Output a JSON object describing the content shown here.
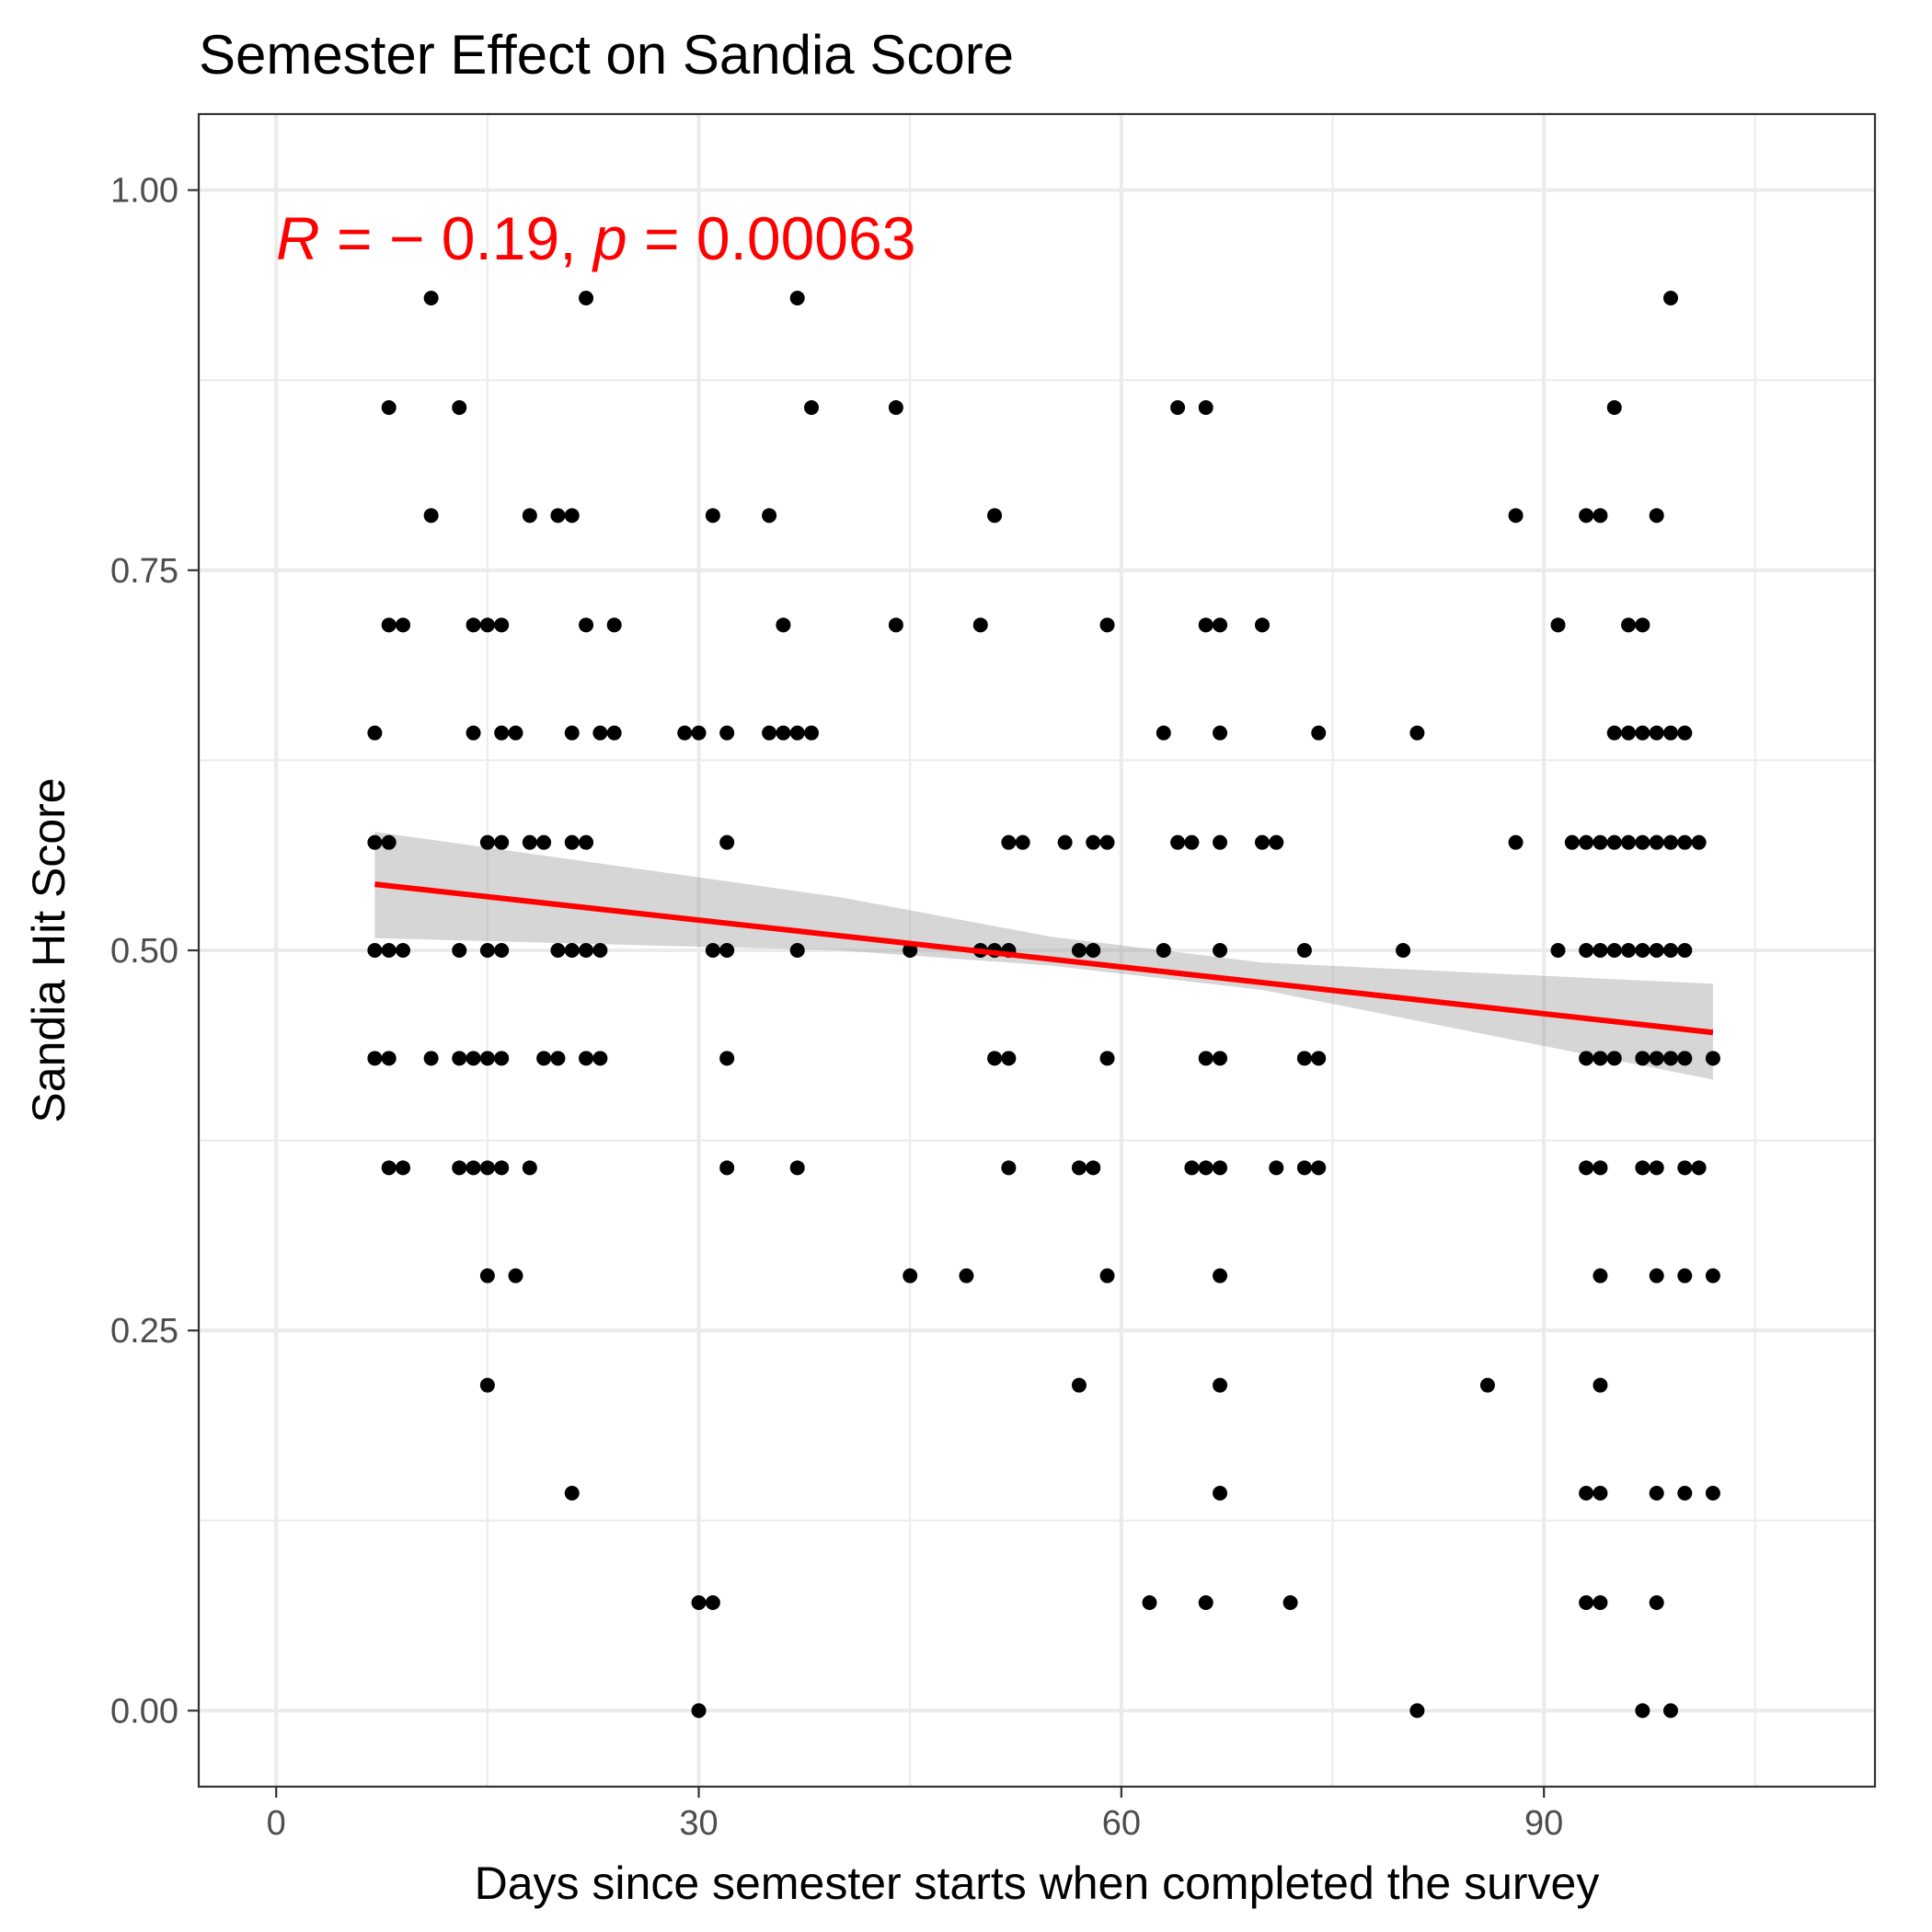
{
  "chart_data": {
    "type": "scatter",
    "title": "Semester Effect on Sandia Score",
    "xlabel": "Days since semester starts when completed the survey",
    "ylabel": "Sandia Hit Score",
    "xlim": [
      -5.5,
      113.5
    ],
    "ylim": [
      -0.05,
      1.05
    ],
    "x_ticks": [
      "0",
      "30",
      "60",
      "90"
    ],
    "x_tick_values": [
      0,
      30,
      60,
      90
    ],
    "y_ticks": [
      "0.00",
      "0.25",
      "0.50",
      "0.75",
      "1.00"
    ],
    "y_tick_values": [
      0,
      0.25,
      0.5,
      0.75,
      1.0
    ],
    "grid": true,
    "annotation": {
      "r_symbol": "R",
      "r_text": " = − 0.19, ",
      "p_symbol": "p",
      "p_text": " = 0.00063",
      "color": "#ff0000"
    },
    "fit_line": {
      "color": "#ff0000",
      "x": [
        7,
        102
      ],
      "y": [
        0.5435,
        0.446
      ],
      "ci_band": {
        "color": "#999999",
        "x": [
          7,
          40,
          55,
          70,
          102
        ],
        "lower": [
          0.508,
          0.5,
          0.49,
          0.474,
          0.415
        ],
        "upper": [
          0.578,
          0.535,
          0.509,
          0.492,
          0.478
        ]
      }
    },
    "series": [
      {
        "color": "#000000",
        "points": [
          [
            11,
            0.929
          ],
          [
            22,
            0.929
          ],
          [
            37,
            0.929
          ],
          [
            99,
            0.929
          ],
          [
            8,
            0.857
          ],
          [
            13,
            0.857
          ],
          [
            38,
            0.857
          ],
          [
            44,
            0.857
          ],
          [
            64,
            0.857
          ],
          [
            66,
            0.857
          ],
          [
            95,
            0.857
          ],
          [
            11,
            0.786
          ],
          [
            18,
            0.786
          ],
          [
            20,
            0.786
          ],
          [
            21,
            0.786
          ],
          [
            31,
            0.786
          ],
          [
            35,
            0.786
          ],
          [
            51,
            0.786
          ],
          [
            88,
            0.786
          ],
          [
            93,
            0.786
          ],
          [
            94,
            0.786
          ],
          [
            98,
            0.786
          ],
          [
            8,
            0.714
          ],
          [
            9,
            0.714
          ],
          [
            14,
            0.714
          ],
          [
            15,
            0.714
          ],
          [
            16,
            0.714
          ],
          [
            22,
            0.714
          ],
          [
            24,
            0.714
          ],
          [
            36,
            0.714
          ],
          [
            44,
            0.714
          ],
          [
            50,
            0.714
          ],
          [
            59,
            0.714
          ],
          [
            66,
            0.714
          ],
          [
            67,
            0.714
          ],
          [
            70,
            0.714
          ],
          [
            91,
            0.714
          ],
          [
            96,
            0.714
          ],
          [
            97,
            0.714
          ],
          [
            7,
            0.643
          ],
          [
            14,
            0.643
          ],
          [
            16,
            0.643
          ],
          [
            17,
            0.643
          ],
          [
            21,
            0.643
          ],
          [
            23,
            0.643
          ],
          [
            24,
            0.643
          ],
          [
            29,
            0.643
          ],
          [
            30,
            0.643
          ],
          [
            32,
            0.643
          ],
          [
            35,
            0.643
          ],
          [
            36,
            0.643
          ],
          [
            37,
            0.643
          ],
          [
            38,
            0.643
          ],
          [
            63,
            0.643
          ],
          [
            67,
            0.643
          ],
          [
            74,
            0.643
          ],
          [
            81,
            0.643
          ],
          [
            95,
            0.643
          ],
          [
            96,
            0.643
          ],
          [
            97,
            0.643
          ],
          [
            98,
            0.643
          ],
          [
            99,
            0.643
          ],
          [
            100,
            0.643
          ],
          [
            7,
            0.571
          ],
          [
            8,
            0.571
          ],
          [
            15,
            0.571
          ],
          [
            16,
            0.571
          ],
          [
            18,
            0.571
          ],
          [
            19,
            0.571
          ],
          [
            21,
            0.571
          ],
          [
            22,
            0.571
          ],
          [
            32,
            0.571
          ],
          [
            52,
            0.571
          ],
          [
            53,
            0.571
          ],
          [
            56,
            0.571
          ],
          [
            58,
            0.571
          ],
          [
            59,
            0.571
          ],
          [
            64,
            0.571
          ],
          [
            65,
            0.571
          ],
          [
            67,
            0.571
          ],
          [
            70,
            0.571
          ],
          [
            71,
            0.571
          ],
          [
            88,
            0.571
          ],
          [
            92,
            0.571
          ],
          [
            93,
            0.571
          ],
          [
            94,
            0.571
          ],
          [
            95,
            0.571
          ],
          [
            96,
            0.571
          ],
          [
            97,
            0.571
          ],
          [
            98,
            0.571
          ],
          [
            99,
            0.571
          ],
          [
            100,
            0.571
          ],
          [
            101,
            0.571
          ],
          [
            7,
            0.5
          ],
          [
            8,
            0.5
          ],
          [
            9,
            0.5
          ],
          [
            13,
            0.5
          ],
          [
            15,
            0.5
          ],
          [
            16,
            0.5
          ],
          [
            20,
            0.5
          ],
          [
            21,
            0.5
          ],
          [
            22,
            0.5
          ],
          [
            23,
            0.5
          ],
          [
            31,
            0.5
          ],
          [
            32,
            0.5
          ],
          [
            37,
            0.5
          ],
          [
            45,
            0.5
          ],
          [
            50,
            0.5
          ],
          [
            51,
            0.5
          ],
          [
            52,
            0.5
          ],
          [
            57,
            0.5
          ],
          [
            58,
            0.5
          ],
          [
            63,
            0.5
          ],
          [
            67,
            0.5
          ],
          [
            73,
            0.5
          ],
          [
            80,
            0.5
          ],
          [
            91,
            0.5
          ],
          [
            93,
            0.5
          ],
          [
            94,
            0.5
          ],
          [
            95,
            0.5
          ],
          [
            96,
            0.5
          ],
          [
            97,
            0.5
          ],
          [
            98,
            0.5
          ],
          [
            99,
            0.5
          ],
          [
            100,
            0.5
          ],
          [
            7,
            0.429
          ],
          [
            8,
            0.429
          ],
          [
            11,
            0.429
          ],
          [
            13,
            0.429
          ],
          [
            14,
            0.429
          ],
          [
            15,
            0.429
          ],
          [
            16,
            0.429
          ],
          [
            19,
            0.429
          ],
          [
            20,
            0.429
          ],
          [
            22,
            0.429
          ],
          [
            23,
            0.429
          ],
          [
            32,
            0.429
          ],
          [
            51,
            0.429
          ],
          [
            52,
            0.429
          ],
          [
            59,
            0.429
          ],
          [
            66,
            0.429
          ],
          [
            67,
            0.429
          ],
          [
            73,
            0.429
          ],
          [
            74,
            0.429
          ],
          [
            93,
            0.429
          ],
          [
            94,
            0.429
          ],
          [
            95,
            0.429
          ],
          [
            97,
            0.429
          ],
          [
            98,
            0.429
          ],
          [
            99,
            0.429
          ],
          [
            100,
            0.429
          ],
          [
            102,
            0.429
          ],
          [
            8,
            0.357
          ],
          [
            9,
            0.357
          ],
          [
            13,
            0.357
          ],
          [
            14,
            0.357
          ],
          [
            15,
            0.357
          ],
          [
            16,
            0.357
          ],
          [
            18,
            0.357
          ],
          [
            32,
            0.357
          ],
          [
            37,
            0.357
          ],
          [
            52,
            0.357
          ],
          [
            57,
            0.357
          ],
          [
            58,
            0.357
          ],
          [
            65,
            0.357
          ],
          [
            66,
            0.357
          ],
          [
            67,
            0.357
          ],
          [
            71,
            0.357
          ],
          [
            73,
            0.357
          ],
          [
            74,
            0.357
          ],
          [
            93,
            0.357
          ],
          [
            94,
            0.357
          ],
          [
            97,
            0.357
          ],
          [
            98,
            0.357
          ],
          [
            100,
            0.357
          ],
          [
            101,
            0.357
          ],
          [
            15,
            0.286
          ],
          [
            17,
            0.286
          ],
          [
            45,
            0.286
          ],
          [
            49,
            0.286
          ],
          [
            59,
            0.286
          ],
          [
            67,
            0.286
          ],
          [
            94,
            0.286
          ],
          [
            98,
            0.286
          ],
          [
            100,
            0.286
          ],
          [
            102,
            0.286
          ],
          [
            15,
            0.214
          ],
          [
            57,
            0.214
          ],
          [
            67,
            0.214
          ],
          [
            86,
            0.214
          ],
          [
            94,
            0.214
          ],
          [
            21,
            0.143
          ],
          [
            67,
            0.143
          ],
          [
            93,
            0.143
          ],
          [
            94,
            0.143
          ],
          [
            98,
            0.143
          ],
          [
            100,
            0.143
          ],
          [
            102,
            0.143
          ],
          [
            30,
            0.071
          ],
          [
            31,
            0.071
          ],
          [
            62,
            0.071
          ],
          [
            66,
            0.071
          ],
          [
            72,
            0.071
          ],
          [
            93,
            0.071
          ],
          [
            94,
            0.071
          ],
          [
            98,
            0.071
          ],
          [
            30,
            0.0
          ],
          [
            81,
            0.0
          ],
          [
            97,
            0.0
          ],
          [
            99,
            0.0
          ]
        ]
      }
    ]
  }
}
